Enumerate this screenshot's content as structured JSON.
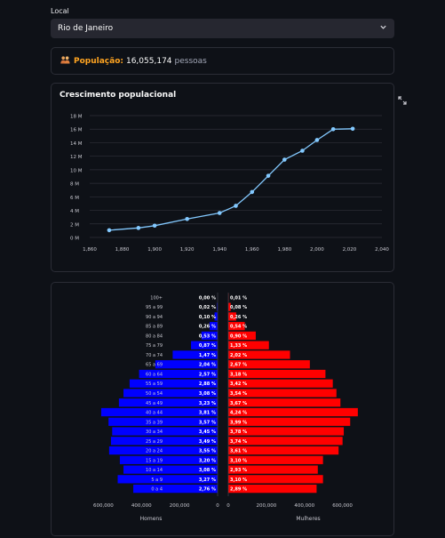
{
  "location": {
    "label": "Local",
    "selected": "Rio de Janeiro",
    "chevron_icon": "chevron-down-icon"
  },
  "population": {
    "icon": "people-icon",
    "label": "População:",
    "value": "16,055,174",
    "unit": "pessoas"
  },
  "growth_chart": {
    "title": "Crescimento populacional",
    "expand_icon": "expand-icon"
  },
  "colors": {
    "background": "#0e1117",
    "line": "#83c9ff",
    "men": "#0000ff",
    "women": "#ff0000",
    "accent": "#ffa421"
  },
  "chart_data": [
    {
      "type": "line",
      "title": "Crescimento populacional",
      "x": [
        1872,
        1890,
        1900,
        1920,
        1940,
        1950,
        1960,
        1970,
        1980,
        1991,
        2000,
        2010,
        2022
      ],
      "y": [
        1.06,
        1.4,
        1.74,
        2.72,
        3.61,
        4.67,
        6.71,
        9.11,
        11.49,
        12.81,
        14.39,
        15.99,
        16.06
      ],
      "y_unit": "M",
      "xlim": [
        1860,
        2040
      ],
      "ylim": [
        0,
        18
      ],
      "xticks": [
        "1,860",
        "1,880",
        "1,900",
        "1,920",
        "1,940",
        "1,960",
        "1,980",
        "2,000",
        "2,020",
        "2,040"
      ],
      "yticks": [
        "0 M",
        "2 M",
        "4 M",
        "6 M",
        "8 M",
        "10 M",
        "12 M",
        "14 M",
        "16 M",
        "18 M"
      ],
      "grid": true
    },
    {
      "type": "bar",
      "orientation": "horizontal-pyramid",
      "categories": [
        "0 a 4",
        "5 a 9",
        "10 a 14",
        "15 a 19",
        "20 a 24",
        "25 a 29",
        "30 a 34",
        "35 a 39",
        "40 a 44",
        "45 a 49",
        "50 a 54",
        "55 a 59",
        "60 a 64",
        "65 a 69",
        "70 a 74",
        "75 a 79",
        "80 a 84",
        "85 a 89",
        "90 a 94",
        "95 a 99",
        "100+"
      ],
      "series": [
        {
          "name": "Homens",
          "labels": [
            "2,76 %",
            "3,27 %",
            "3,08 %",
            "3,20 %",
            "3,55 %",
            "3,49 %",
            "3,45 %",
            "3,57 %",
            "3,81 %",
            "3,23 %",
            "3,08 %",
            "2,88 %",
            "2,57 %",
            "2,04 %",
            "1,47 %",
            "0,87 %",
            "0,53 %",
            "0,26 %",
            "0,10 %",
            "0,02 %",
            "0,00 %"
          ],
          "values": [
            2.76,
            3.27,
            3.08,
            3.2,
            3.55,
            3.49,
            3.45,
            3.57,
            3.81,
            3.23,
            3.08,
            2.88,
            2.57,
            2.04,
            1.47,
            0.87,
            0.53,
            0.26,
            0.1,
            0.02,
            0.0
          ]
        },
        {
          "name": "Mulheres",
          "labels": [
            "2,89 %",
            "3,10 %",
            "2,93 %",
            "3,10 %",
            "3,61 %",
            "3,74 %",
            "3,78 %",
            "3,99 %",
            "4,24 %",
            "3,67 %",
            "3,54 %",
            "3,42 %",
            "3,18 %",
            "2,67 %",
            "2,02 %",
            "1,33 %",
            "0,90 %",
            "0,54 %",
            "0,26 %",
            "0,08 %",
            "0,01 %"
          ],
          "values": [
            2.89,
            3.1,
            2.93,
            3.1,
            3.61,
            3.74,
            3.78,
            3.99,
            4.24,
            3.67,
            3.54,
            3.42,
            3.18,
            2.67,
            2.02,
            1.33,
            0.9,
            0.54,
            0.26,
            0.08,
            0.01
          ]
        }
      ],
      "left_ticks": [
        "600,000",
        "400,000",
        "200,000",
        "0"
      ],
      "right_ticks": [
        "0",
        "200,000",
        "400,000",
        "600,000"
      ],
      "xlabel_left": "Homens",
      "xlabel_right": "Mulheres",
      "xlim": [
        0,
        714000
      ],
      "population_total": 16055174
    }
  ]
}
